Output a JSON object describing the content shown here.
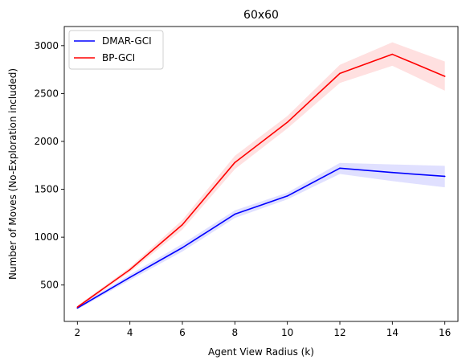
{
  "chart_data": {
    "type": "line",
    "title": "60x60",
    "xlabel": "Agent View Radius (k)",
    "ylabel": "Number of Moves (No-Exploration included)",
    "x": [
      2,
      4,
      6,
      8,
      10,
      12,
      14,
      16
    ],
    "xlim": [
      1.5,
      16.5
    ],
    "ylim": [
      120,
      3200
    ],
    "xticks": [
      2,
      4,
      6,
      8,
      10,
      12,
      14,
      16
    ],
    "yticks": [
      500,
      1000,
      1500,
      2000,
      2500,
      3000
    ],
    "grid": false,
    "legend_position": "upper-left",
    "series": [
      {
        "name": "DMAR-GCI",
        "color": "#0000ff",
        "values": [
          260,
          580,
          890,
          1240,
          1430,
          1720,
          1675,
          1635
        ],
        "lower": [
          245,
          550,
          850,
          1200,
          1395,
          1660,
          1585,
          1520
        ],
        "upper": [
          275,
          610,
          930,
          1280,
          1465,
          1775,
          1760,
          1745
        ]
      },
      {
        "name": "BP-GCI",
        "color": "#ff0000",
        "values": [
          270,
          660,
          1130,
          1780,
          2200,
          2710,
          2910,
          2680
        ],
        "lower": [
          255,
          635,
          1080,
          1710,
          2135,
          2610,
          2790,
          2530
        ],
        "upper": [
          285,
          685,
          1180,
          1850,
          2265,
          2800,
          3035,
          2835
        ]
      }
    ]
  }
}
